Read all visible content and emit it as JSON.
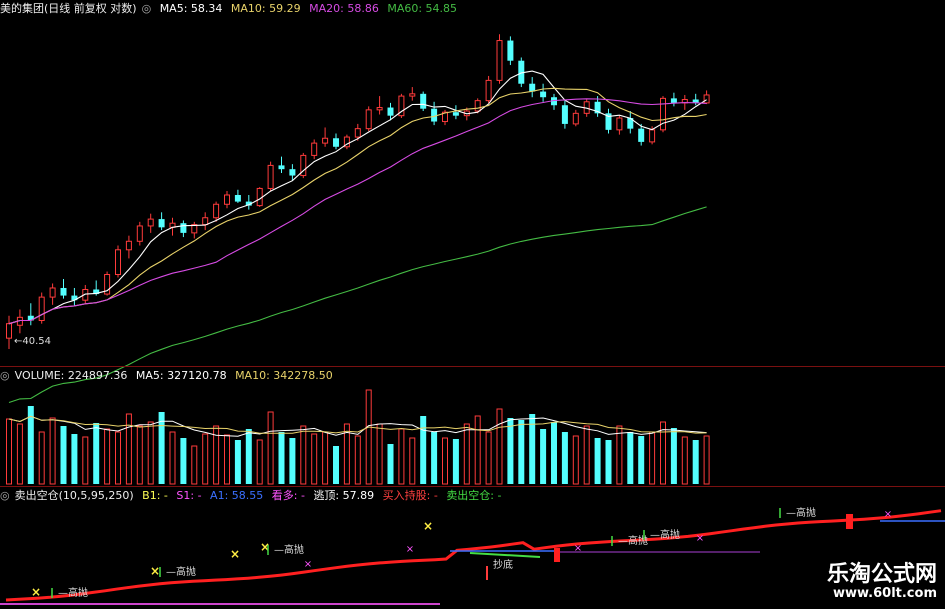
{
  "header_price": {
    "title": "美的集团(日线 前复权 对数)",
    "ma5": "MA5: 58.34",
    "ma10": "MA10: 59.29",
    "ma20": "MA20: 58.86",
    "ma60": "MA60: 54.85"
  },
  "header_volume": {
    "title": "VOLUME: 224897.36",
    "ma5": "MA5: 327120.78",
    "ma10": "MA10: 342278.50"
  },
  "header_indicator": {
    "title": "卖出空仓(10,5,95,250)",
    "b1": "B1: -",
    "s1": "S1: -",
    "a1": "A1: 58.55",
    "kd": "看多: -",
    "tj": "逃顶: 57.89",
    "mr": "买入持股: -",
    "mc": "卖出空仓: -"
  },
  "low_label": "40.54",
  "colors": {
    "up": "#ff3b3b",
    "down": "#54ffff",
    "ma5": "#ffffff",
    "ma10": "#e8d26a",
    "ma20": "#d64be3",
    "ma60": "#44bb44",
    "sep": "#7a1010"
  },
  "watermark": {
    "name": "乐淘公式网",
    "url": "www.60lt.com"
  },
  "chart_data": {
    "type": "candlestick",
    "candles": [
      {
        "o": 41.2,
        "h": 42.6,
        "l": 40.54,
        "c": 42.1
      },
      {
        "o": 42.0,
        "h": 43.0,
        "l": 41.5,
        "c": 42.5
      },
      {
        "o": 42.6,
        "h": 43.4,
        "l": 42.0,
        "c": 42.3
      },
      {
        "o": 42.3,
        "h": 44.1,
        "l": 42.1,
        "c": 43.8
      },
      {
        "o": 43.8,
        "h": 44.7,
        "l": 43.3,
        "c": 44.4
      },
      {
        "o": 44.4,
        "h": 45.0,
        "l": 43.7,
        "c": 43.9
      },
      {
        "o": 43.9,
        "h": 44.4,
        "l": 43.2,
        "c": 43.6
      },
      {
        "o": 43.6,
        "h": 44.6,
        "l": 43.4,
        "c": 44.3
      },
      {
        "o": 44.3,
        "h": 44.9,
        "l": 43.9,
        "c": 44.0
      },
      {
        "o": 44.0,
        "h": 45.5,
        "l": 43.9,
        "c": 45.3
      },
      {
        "o": 45.3,
        "h": 47.3,
        "l": 45.1,
        "c": 47.0
      },
      {
        "o": 47.0,
        "h": 48.0,
        "l": 46.4,
        "c": 47.6
      },
      {
        "o": 47.6,
        "h": 49.0,
        "l": 47.3,
        "c": 48.7
      },
      {
        "o": 48.7,
        "h": 49.6,
        "l": 48.2,
        "c": 49.2
      },
      {
        "o": 49.2,
        "h": 49.7,
        "l": 48.4,
        "c": 48.6
      },
      {
        "o": 48.6,
        "h": 49.3,
        "l": 48.0,
        "c": 48.9
      },
      {
        "o": 48.9,
        "h": 49.1,
        "l": 47.9,
        "c": 48.2
      },
      {
        "o": 48.2,
        "h": 49.0,
        "l": 47.8,
        "c": 48.8
      },
      {
        "o": 48.8,
        "h": 49.7,
        "l": 48.4,
        "c": 49.3
      },
      {
        "o": 49.3,
        "h": 50.5,
        "l": 49.0,
        "c": 50.3
      },
      {
        "o": 50.3,
        "h": 51.3,
        "l": 50.0,
        "c": 51.0
      },
      {
        "o": 51.0,
        "h": 51.4,
        "l": 50.4,
        "c": 50.5
      },
      {
        "o": 50.5,
        "h": 51.0,
        "l": 49.9,
        "c": 50.2
      },
      {
        "o": 50.2,
        "h": 51.6,
        "l": 50.1,
        "c": 51.5
      },
      {
        "o": 51.5,
        "h": 53.6,
        "l": 51.3,
        "c": 53.3
      },
      {
        "o": 53.3,
        "h": 54.0,
        "l": 52.7,
        "c": 53.0
      },
      {
        "o": 53.0,
        "h": 53.4,
        "l": 52.1,
        "c": 52.5
      },
      {
        "o": 52.5,
        "h": 54.3,
        "l": 52.3,
        "c": 54.1
      },
      {
        "o": 54.1,
        "h": 55.4,
        "l": 53.8,
        "c": 55.1
      },
      {
        "o": 55.1,
        "h": 56.4,
        "l": 54.8,
        "c": 55.5
      },
      {
        "o": 55.5,
        "h": 55.9,
        "l": 54.6,
        "c": 54.8
      },
      {
        "o": 54.8,
        "h": 55.8,
        "l": 54.6,
        "c": 55.6
      },
      {
        "o": 55.6,
        "h": 56.7,
        "l": 55.3,
        "c": 56.3
      },
      {
        "o": 56.3,
        "h": 58.2,
        "l": 56.1,
        "c": 57.9
      },
      {
        "o": 57.9,
        "h": 59.1,
        "l": 57.5,
        "c": 58.1
      },
      {
        "o": 58.1,
        "h": 58.5,
        "l": 57.0,
        "c": 57.4
      },
      {
        "o": 57.4,
        "h": 59.3,
        "l": 57.2,
        "c": 59.1
      },
      {
        "o": 59.1,
        "h": 59.9,
        "l": 58.7,
        "c": 59.3
      },
      {
        "o": 59.3,
        "h": 59.5,
        "l": 57.8,
        "c": 58.0
      },
      {
        "o": 58.0,
        "h": 58.6,
        "l": 56.6,
        "c": 56.9
      },
      {
        "o": 56.9,
        "h": 57.9,
        "l": 56.6,
        "c": 57.7
      },
      {
        "o": 57.7,
        "h": 58.3,
        "l": 57.1,
        "c": 57.4
      },
      {
        "o": 57.4,
        "h": 58.1,
        "l": 57.0,
        "c": 57.8
      },
      {
        "o": 57.8,
        "h": 58.9,
        "l": 57.6,
        "c": 58.7
      },
      {
        "o": 58.7,
        "h": 60.9,
        "l": 58.5,
        "c": 60.5
      },
      {
        "o": 60.5,
        "h": 64.8,
        "l": 60.2,
        "c": 64.2
      },
      {
        "o": 64.2,
        "h": 64.6,
        "l": 61.9,
        "c": 62.3
      },
      {
        "o": 62.3,
        "h": 62.6,
        "l": 59.9,
        "c": 60.2
      },
      {
        "o": 60.2,
        "h": 60.8,
        "l": 59.0,
        "c": 59.5
      },
      {
        "o": 59.5,
        "h": 60.2,
        "l": 58.6,
        "c": 59.0
      },
      {
        "o": 59.0,
        "h": 59.3,
        "l": 57.9,
        "c": 58.3
      },
      {
        "o": 58.3,
        "h": 58.8,
        "l": 56.3,
        "c": 56.7
      },
      {
        "o": 56.7,
        "h": 57.9,
        "l": 56.5,
        "c": 57.6
      },
      {
        "o": 57.6,
        "h": 58.8,
        "l": 57.3,
        "c": 58.6
      },
      {
        "o": 58.6,
        "h": 59.1,
        "l": 57.3,
        "c": 57.6
      },
      {
        "o": 57.6,
        "h": 58.0,
        "l": 55.9,
        "c": 56.2
      },
      {
        "o": 56.2,
        "h": 57.4,
        "l": 55.8,
        "c": 57.2
      },
      {
        "o": 57.2,
        "h": 57.8,
        "l": 55.9,
        "c": 56.3
      },
      {
        "o": 56.3,
        "h": 56.7,
        "l": 54.9,
        "c": 55.2
      },
      {
        "o": 55.2,
        "h": 56.5,
        "l": 55.0,
        "c": 56.2
      },
      {
        "o": 56.2,
        "h": 59.1,
        "l": 56.0,
        "c": 58.9
      },
      {
        "o": 58.9,
        "h": 59.4,
        "l": 58.2,
        "c": 58.5
      },
      {
        "o": 58.5,
        "h": 59.2,
        "l": 57.9,
        "c": 58.8
      },
      {
        "o": 58.8,
        "h": 59.3,
        "l": 58.3,
        "c": 58.5
      },
      {
        "o": 58.5,
        "h": 59.6,
        "l": 58.4,
        "c": 59.2
      }
    ],
    "volume": [
      65,
      60,
      78,
      52,
      66,
      58,
      50,
      47,
      61,
      55,
      52,
      70,
      58,
      62,
      72,
      52,
      46,
      38,
      50,
      58,
      49,
      44,
      55,
      44,
      72,
      52,
      46,
      58,
      50,
      52,
      38,
      60,
      48,
      94,
      60,
      40,
      55,
      46,
      68,
      52,
      46,
      45,
      60,
      68,
      52,
      75,
      66,
      64,
      70,
      55,
      62,
      52,
      48,
      58,
      46,
      44,
      58,
      52,
      48,
      52,
      62,
      56,
      47,
      44,
      48
    ],
    "price_ylim": [
      40.0,
      66.0
    ],
    "ma_names": [
      "MA5",
      "MA10",
      "MA20",
      "MA60"
    ],
    "indicator": {
      "a1_label": "高抛",
      "ts_label": "抄底",
      "high_marks": [
        {
          "i": 3,
          "label": "高抛"
        },
        {
          "i": 14,
          "label": "高抛"
        },
        {
          "i": 25,
          "label": "高抛"
        },
        {
          "i": 56,
          "label": "高抛"
        },
        {
          "i": 60,
          "label": "高抛"
        },
        {
          "i": 73,
          "label": "高抛"
        }
      ],
      "low_mark": {
        "i": 46,
        "label": "抄底"
      }
    }
  }
}
